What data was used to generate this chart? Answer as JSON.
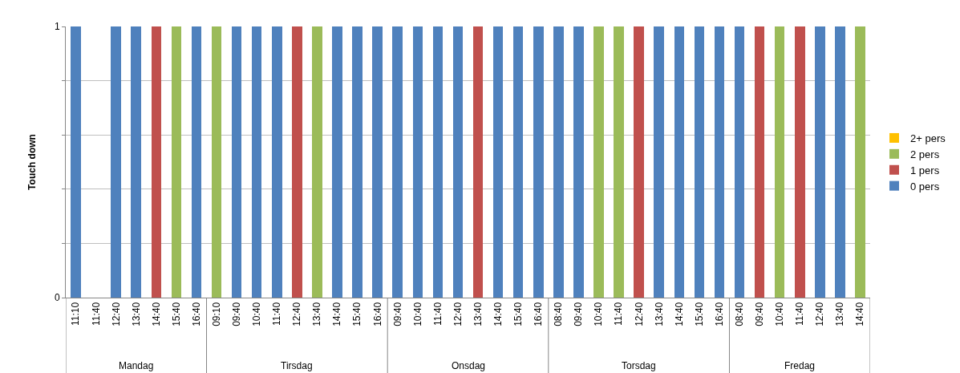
{
  "chart_data": {
    "type": "bar",
    "stacked": true,
    "ylabel": "Touch down",
    "categories": [
      "11:10",
      "11:40",
      "12:40",
      "13:40",
      "14:40",
      "15:40",
      "16:40",
      "09:10",
      "09:40",
      "10:40",
      "11:40",
      "12:40",
      "13:40",
      "14:40",
      "15:40",
      "16:40",
      "09:40",
      "10:40",
      "11:40",
      "12:40",
      "13:40",
      "14:40",
      "15:40",
      "16:40",
      "08:40",
      "09:40",
      "10:40",
      "11:40",
      "12:40",
      "13:40",
      "14:40",
      "15:40",
      "16:40",
      "08:40",
      "09:40",
      "10:40",
      "11:40",
      "12:40",
      "13:40",
      "14:40"
    ],
    "annotations": [
      "Mandag",
      "Tirsdag",
      "Onsdag",
      "Torsdag",
      "Fredag"
    ],
    "series": [
      {
        "name": "0 pers",
        "color": "#4f81bd",
        "values": [
          1,
          0,
          1,
          1,
          0,
          0,
          1,
          0,
          1,
          1,
          1,
          0,
          0,
          1,
          1,
          1,
          1,
          1,
          1,
          1,
          0,
          1,
          1,
          1,
          1,
          1,
          0,
          0,
          0,
          1,
          1,
          1,
          1,
          1,
          0,
          0,
          0,
          1,
          1,
          0
        ]
      },
      {
        "name": "1 pers",
        "color": "#c0504d",
        "values": [
          0,
          0,
          0,
          0,
          1,
          0,
          0,
          0,
          0,
          0,
          0,
          1,
          0,
          0,
          0,
          0,
          0,
          0,
          0,
          0,
          1,
          0,
          0,
          0,
          0,
          0,
          0,
          0,
          1,
          0,
          0,
          0,
          0,
          0,
          1,
          0,
          1,
          0,
          0,
          0
        ]
      },
      {
        "name": "2 pers",
        "color": "#9bbb59",
        "values": [
          0,
          0,
          0,
          0,
          0,
          1,
          0,
          1,
          0,
          0,
          0,
          0,
          1,
          0,
          0,
          0,
          0,
          0,
          0,
          0,
          0,
          0,
          0,
          0,
          0,
          0,
          1,
          1,
          0,
          0,
          0,
          0,
          0,
          0,
          0,
          1,
          0,
          0,
          0,
          1
        ]
      },
      {
        "name": "2+ pers",
        "color": "#ffc000",
        "values": [
          0,
          0,
          0,
          0,
          0,
          0,
          0,
          0,
          0,
          0,
          0,
          0,
          0,
          0,
          0,
          0,
          0,
          0,
          0,
          0,
          0,
          0,
          0,
          0,
          0,
          0,
          0,
          0,
          0,
          0,
          0,
          0,
          0,
          0,
          0,
          0,
          0,
          0,
          0,
          0
        ]
      }
    ],
    "ylim": [
      0,
      1
    ],
    "yticks": [
      0,
      {
        "value": 0.2,
        "label": null
      },
      {
        "value": 0.4,
        "label": null
      },
      {
        "value": 0.6,
        "label": null
      },
      {
        "value": 0.8,
        "label": null
      },
      1
    ],
    "grid": "y",
    "legend": "right"
  }
}
